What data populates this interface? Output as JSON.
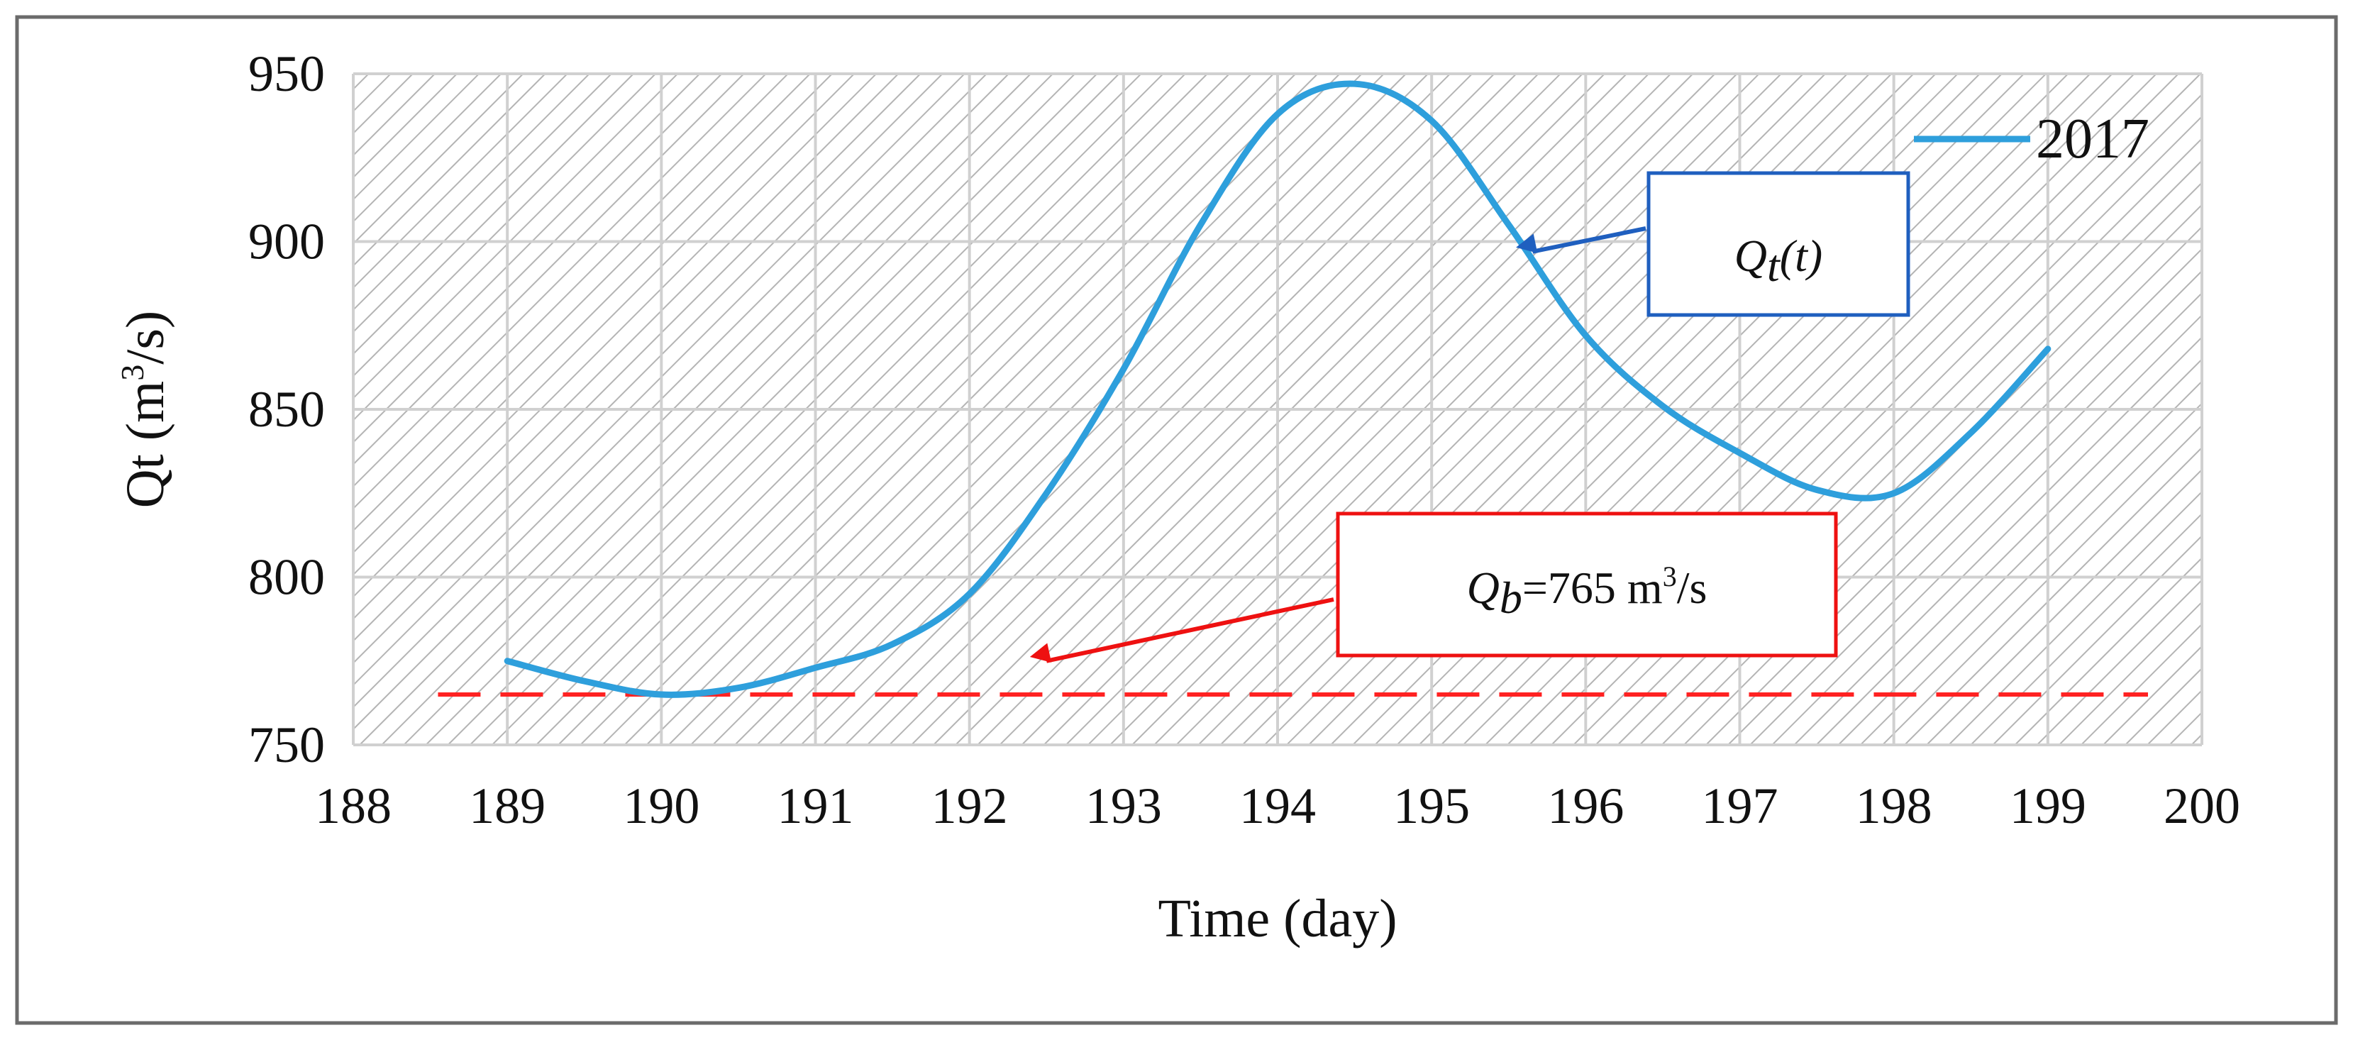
{
  "chart_data": {
    "type": "line",
    "title": "",
    "xlabel": "Time (day)",
    "ylabel_main": "Qt (m",
    "ylabel_sup": "3",
    "ylabel_end": "/s)",
    "xlim": [
      188,
      200
    ],
    "ylim": [
      750,
      950
    ],
    "xticks": [
      188,
      189,
      190,
      191,
      192,
      193,
      194,
      195,
      196,
      197,
      198,
      199,
      200
    ],
    "yticks": [
      750,
      800,
      850,
      900,
      950
    ],
    "grid": true,
    "legend_position": "top-right",
    "series": [
      {
        "name": "2017",
        "color": "#2e9fdc",
        "x": [
          189,
          189.5,
          190,
          190.5,
          191,
          191.5,
          192,
          192.5,
          193,
          193.5,
          194,
          194.5,
          195,
          195.5,
          196,
          196.5,
          197,
          197.5,
          198,
          198.5,
          199
        ],
        "y": [
          775,
          769,
          765,
          767,
          773,
          780,
          795,
          825,
          862,
          905,
          938,
          947,
          936,
          905,
          872,
          851,
          837,
          826,
          825,
          843,
          868
        ]
      }
    ],
    "baseline": {
      "name": "Qb",
      "value": 765,
      "x_range": [
        188.55,
        199.65
      ],
      "color": "#ff2222",
      "style": "dashed"
    },
    "annotations": [
      {
        "name": "qt-annotation",
        "symbol": "Q",
        "subscript": "t",
        "suffix": "(t)",
        "border_color": "#1f5fbf",
        "arrow_color": "#1f5fbf",
        "target": [
          195.6,
          897
        ]
      },
      {
        "name": "qb-annotation",
        "symbol": "Q",
        "subscript": "b",
        "text": "=765 m",
        "sup": "3",
        "unit_end": "/s",
        "border_color": "#ee1111",
        "arrow_color": "#ee1111",
        "target": [
          192.5,
          775
        ]
      }
    ]
  }
}
